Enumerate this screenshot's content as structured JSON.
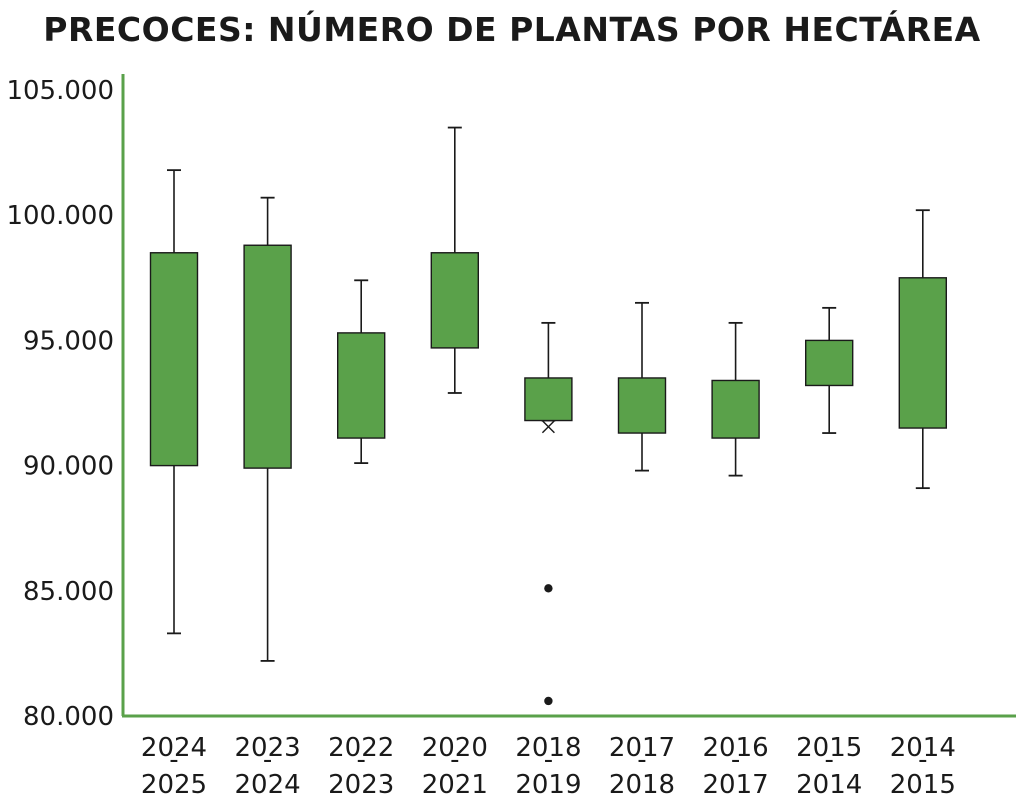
{
  "chart_data": {
    "type": "boxplot",
    "title": "PRECOCES: NÚMERO DE PLANTAS POR HECTÁREA",
    "xlabel": "",
    "ylabel": "",
    "ylim": [
      80000,
      105000
    ],
    "yticks": [
      80000,
      85000,
      90000,
      95000,
      100000,
      105000
    ],
    "ytick_labels": [
      "80.000",
      "85.000",
      "90.000",
      "95.000",
      "100.000",
      "105.000"
    ],
    "grid": false,
    "colors": {
      "box": "#5aa14a",
      "axis": "#5aa14a",
      "line": "#1a1a1a"
    },
    "categories": [
      {
        "top": "2024",
        "sep": "-",
        "bottom": "2025"
      },
      {
        "top": "2023",
        "sep": "-",
        "bottom": "2024"
      },
      {
        "top": "2022",
        "sep": "-",
        "bottom": "2023"
      },
      {
        "top": "2020",
        "sep": "-",
        "bottom": "2021"
      },
      {
        "top": "2018",
        "sep": "-",
        "bottom": "2019"
      },
      {
        "top": "2017",
        "sep": "-",
        "bottom": "2018"
      },
      {
        "top": "2016",
        "sep": "-",
        "bottom": "2017"
      },
      {
        "top": "2015",
        "sep": "-",
        "bottom": "2014"
      },
      {
        "top": "2014",
        "sep": "-",
        "bottom": "2015"
      }
    ],
    "boxes": [
      {
        "whisker_low": 83300,
        "q1": 90000,
        "q3": 98500,
        "whisker_high": 101800
      },
      {
        "whisker_low": 82200,
        "q1": 89900,
        "q3": 98800,
        "whisker_high": 100700
      },
      {
        "whisker_low": 90100,
        "q1": 91100,
        "q3": 95300,
        "whisker_high": 97400
      },
      {
        "whisker_low": 92900,
        "q1": 94700,
        "q3": 98500,
        "whisker_high": 103500
      },
      {
        "whisker_low": 91800,
        "q1": 91800,
        "q3": 93500,
        "whisker_high": 95700,
        "mean": 91550,
        "outliers": [
          85100,
          80600
        ]
      },
      {
        "whisker_low": 89800,
        "q1": 91300,
        "q3": 93500,
        "whisker_high": 96500
      },
      {
        "whisker_low": 89600,
        "q1": 91100,
        "q3": 93400,
        "whisker_high": 95700
      },
      {
        "whisker_low": 91300,
        "q1": 93200,
        "q3": 95000,
        "whisker_high": 96300
      },
      {
        "whisker_low": 89100,
        "q1": 91500,
        "q3": 97500,
        "whisker_high": 100200
      }
    ]
  }
}
